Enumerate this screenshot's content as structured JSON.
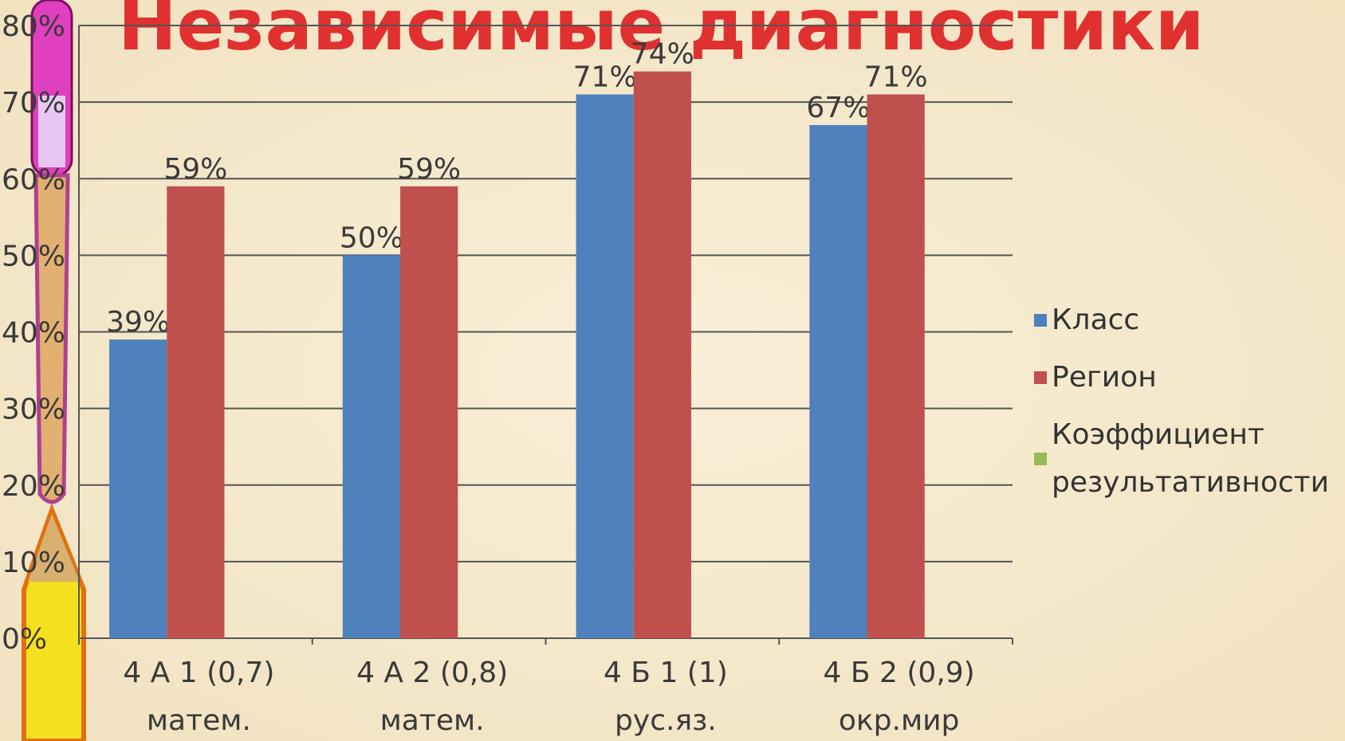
{
  "chart_data": {
    "type": "bar",
    "title": "Независимые диагностики",
    "categories": [
      [
        "4 А 1  (0,7)",
        "матем."
      ],
      [
        "4 А 2  (0,8)",
        "матем."
      ],
      [
        "4 Б 1  (1)",
        "рус.яз."
      ],
      [
        "4 Б 2  (0,9)",
        "окр.мир"
      ]
    ],
    "series": [
      {
        "name": "Класс",
        "color": "#4f81bd",
        "values": [
          39,
          50,
          71,
          67
        ],
        "value_labels": [
          "39%",
          "50%",
          "71%",
          "67%"
        ]
      },
      {
        "name": "Регион",
        "color": "#c0504d",
        "values": [
          59,
          59,
          74,
          71
        ],
        "value_labels": [
          "59%",
          "59%",
          "74%",
          "71%"
        ]
      },
      {
        "name": "Коэффициент результативности",
        "color": "#9bbb59",
        "values": [
          null,
          null,
          null,
          null
        ]
      }
    ],
    "ylim": [
      0,
      80
    ],
    "yticks": [
      {
        "value": 0,
        "label": "0%"
      },
      {
        "value": 10,
        "label": "10%"
      },
      {
        "value": 20,
        "label": "20%"
      },
      {
        "value": 30,
        "label": "30%"
      },
      {
        "value": 40,
        "label": "40%"
      },
      {
        "value": 50,
        "label": "50%"
      },
      {
        "value": 60,
        "label": "60%"
      },
      {
        "value": 70,
        "label": "70%"
      },
      {
        "value": 80,
        "label": "80%"
      }
    ],
    "grid": true,
    "legend": "right"
  }
}
